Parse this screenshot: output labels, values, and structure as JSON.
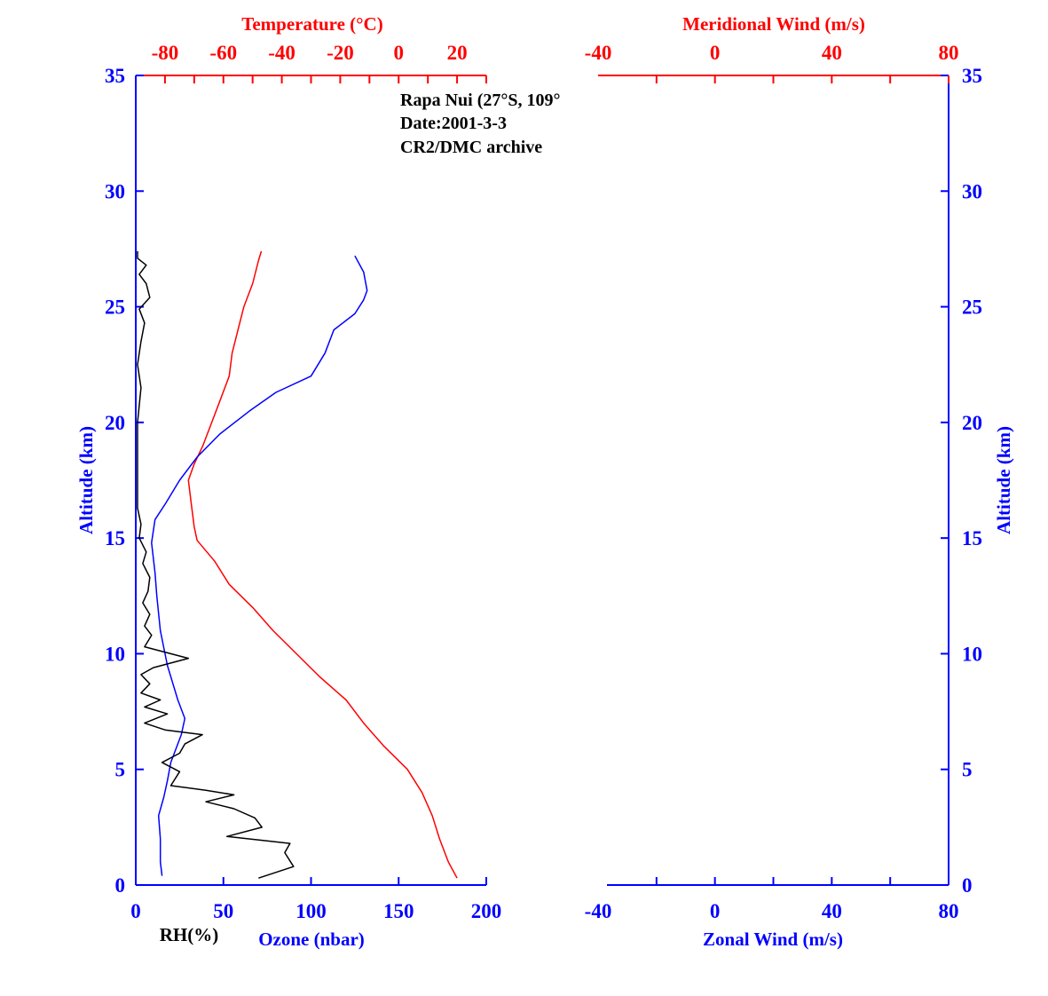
{
  "colors": {
    "altitude_axis": "#0000ff",
    "temperature": "#ff0000",
    "ozone": "#0000ff",
    "rh": "#000000",
    "meridional_wind": "#ff0000",
    "zonal_wind": "#0000ff"
  },
  "annotation": {
    "station": "Rapa Nui (27°S, 109°",
    "date": "Date:2001-3-3",
    "source": "CR2/DMC archive"
  },
  "chart_data": [
    {
      "type": "line",
      "panel": "left",
      "ylabel": "Altitude (km)",
      "ylim": [
        0,
        35
      ],
      "yticks": [
        0,
        5,
        10,
        15,
        20,
        25,
        30,
        35
      ],
      "grid": false,
      "bottom_axis": {
        "label_rh": "RH(%)",
        "label_ozone": "Ozone (nbar)",
        "range": [
          0,
          200
        ],
        "ticks": [
          0,
          50,
          100,
          150,
          200
        ]
      },
      "top_axis": {
        "label": "Temperature (°C)",
        "range": [
          -90,
          30
        ],
        "ticks": [
          -80,
          -60,
          -40,
          -20,
          0,
          20
        ]
      },
      "series": [
        {
          "name": "Temperature",
          "axis": "top",
          "points": [
            [
              20,
              0.3
            ],
            [
              17,
              1.0
            ],
            [
              14,
              2.0
            ],
            [
              11.5,
              3.0
            ],
            [
              8,
              4.0
            ],
            [
              3,
              5.0
            ],
            [
              -5,
              6.0
            ],
            [
              -12,
              7.0
            ],
            [
              -18,
              8.0
            ],
            [
              -27,
              9.0
            ],
            [
              -35,
              10.0
            ],
            [
              -43,
              11.0
            ],
            [
              -50,
              12.0
            ],
            [
              -58,
              13.0
            ],
            [
              -63,
              14.0
            ],
            [
              -69,
              14.9
            ],
            [
              -70,
              15.5
            ],
            [
              -71,
              16.5
            ],
            [
              -72,
              17.5
            ],
            [
              -70,
              18.2
            ],
            [
              -67,
              19.0
            ],
            [
              -64,
              20.0
            ],
            [
              -61,
              21.0
            ],
            [
              -58,
              22.0
            ],
            [
              -57,
              23.0
            ],
            [
              -55,
              24.0
            ],
            [
              -53,
              25.0
            ],
            [
              -50,
              26.0
            ],
            [
              -48,
              27.0
            ],
            [
              -47,
              27.4
            ]
          ]
        },
        {
          "name": "Ozone",
          "axis": "bottom",
          "points": [
            [
              15,
              0.4
            ],
            [
              14,
              1.0
            ],
            [
              14,
              2.0
            ],
            [
              13,
              3.0
            ],
            [
              16,
              3.8
            ],
            [
              18,
              4.5
            ],
            [
              20,
              5.3
            ],
            [
              26,
              6.5
            ],
            [
              28,
              7.2
            ],
            [
              24,
              8.0
            ],
            [
              18,
              9.5
            ],
            [
              14,
              11.0
            ],
            [
              12,
              12.5
            ],
            [
              11,
              13.5
            ],
            [
              9,
              14.8
            ],
            [
              11,
              15.8
            ],
            [
              17,
              16.5
            ],
            [
              25,
              17.5
            ],
            [
              35,
              18.5
            ],
            [
              48,
              19.5
            ],
            [
              65,
              20.5
            ],
            [
              80,
              21.3
            ],
            [
              100,
              22.0
            ],
            [
              108,
              23.0
            ],
            [
              113,
              24.0
            ],
            [
              125,
              24.7
            ],
            [
              130,
              25.3
            ],
            [
              132,
              25.7
            ],
            [
              130,
              26.5
            ],
            [
              125,
              27.2
            ]
          ]
        },
        {
          "name": "RH",
          "axis": "bottom",
          "points": [
            [
              70,
              0.3
            ],
            [
              90,
              0.8
            ],
            [
              85,
              1.4
            ],
            [
              88,
              1.8
            ],
            [
              52,
              2.1
            ],
            [
              72,
              2.5
            ],
            [
              68,
              2.9
            ],
            [
              56,
              3.3
            ],
            [
              40,
              3.6
            ],
            [
              56,
              3.9
            ],
            [
              40,
              4.1
            ],
            [
              20,
              4.3
            ],
            [
              25,
              4.9
            ],
            [
              15,
              5.3
            ],
            [
              25,
              5.7
            ],
            [
              28,
              6.1
            ],
            [
              38,
              6.5
            ],
            [
              17,
              6.7
            ],
            [
              5,
              7.0
            ],
            [
              18,
              7.4
            ],
            [
              5,
              7.7
            ],
            [
              14,
              8.0
            ],
            [
              3,
              8.3
            ],
            [
              8,
              8.7
            ],
            [
              3,
              9.1
            ],
            [
              10,
              9.4
            ],
            [
              30,
              9.8
            ],
            [
              5,
              10.3
            ],
            [
              9,
              10.8
            ],
            [
              5,
              11.2
            ],
            [
              8,
              11.7
            ],
            [
              4,
              12.2
            ],
            [
              7,
              12.7
            ],
            [
              8,
              13.3
            ],
            [
              4,
              13.9
            ],
            [
              6,
              14.4
            ],
            [
              2,
              15.0
            ],
            [
              3,
              15.6
            ],
            [
              1,
              16.3
            ],
            [
              1,
              18.0
            ],
            [
              1,
              20.0
            ],
            [
              3,
              21.5
            ],
            [
              1,
              22.5
            ],
            [
              3,
              23.5
            ],
            [
              5,
              24.3
            ],
            [
              2,
              24.9
            ],
            [
              8,
              25.4
            ],
            [
              6,
              26.0
            ],
            [
              2,
              26.4
            ],
            [
              6,
              26.8
            ],
            [
              1,
              27.1
            ],
            [
              1,
              27.4
            ]
          ]
        }
      ]
    },
    {
      "type": "line",
      "panel": "right",
      "ylabel": "Altitude (km)",
      "ylim": [
        0,
        35
      ],
      "yticks": [
        0,
        5,
        10,
        15,
        20,
        25,
        30,
        35
      ],
      "grid": false,
      "bottom_axis": {
        "label": "Zonal Wind (m/s)",
        "range": [
          -40,
          80
        ],
        "ticks": [
          -40,
          0,
          40,
          80
        ]
      },
      "top_axis": {
        "label": "Meridional Wind (m/s)",
        "range": [
          -40,
          80
        ],
        "ticks": [
          -40,
          0,
          40,
          80
        ]
      },
      "series": []
    }
  ]
}
